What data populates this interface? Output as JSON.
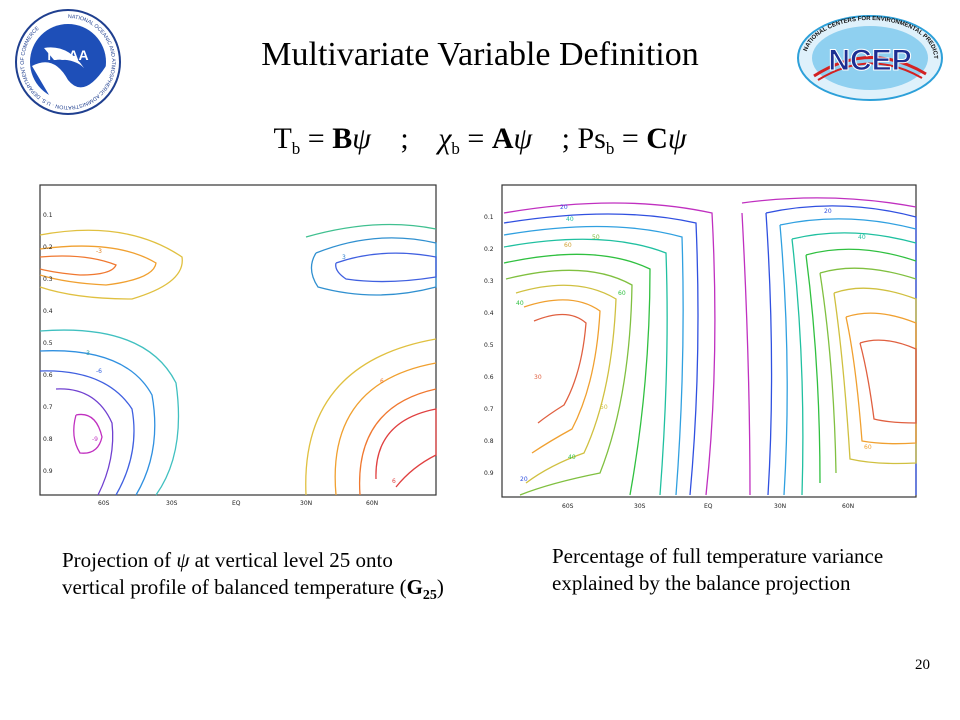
{
  "slide": {
    "title": "Multivariate Variable Definition",
    "page_number": "20"
  },
  "logos": {
    "left": {
      "name": "NOAA",
      "ring_text": "NATIONAL OCEANIC AND ATMOSPHERIC ADMINISTRATION · U.S. DEPARTMENT OF COMMERCE"
    },
    "right": {
      "name": "NCEP",
      "ring_text": "NATIONAL CENTERS FOR ENVIRONMENTAL PREDICTION"
    }
  },
  "equation": {
    "t_base": "T",
    "t_sub": "b",
    "t_rhs": "B",
    "chi": "χ",
    "chi_sub": "b",
    "chi_rhs": "A",
    "ps_base": "Ps",
    "ps_sub": "b",
    "ps_rhs": "C",
    "psi": "ψ",
    "eq": "=",
    "sep": ";"
  },
  "plots": {
    "y_ticks": [
      "0.1",
      "0.2",
      "0.3",
      "0.4",
      "0.5",
      "0.6",
      "0.7",
      "0.8",
      "0.9"
    ],
    "x_ticks": [
      "60S",
      "30S",
      "EQ",
      "30N",
      "60N"
    ],
    "left_labels": [
      "-3",
      "-3",
      "-6",
      "-9",
      "3",
      "6",
      "6"
    ],
    "right_labels": [
      "20",
      "40",
      "50",
      "60",
      "60",
      "40",
      "20",
      "30",
      "40",
      "50",
      "60",
      "20",
      "40"
    ]
  },
  "captions": {
    "left_prefix": "Projection of ",
    "left_psi": "ψ",
    "left_rest": " at vertical level 25 onto vertical profile of balanced temperature (",
    "left_bold": "G",
    "left_sub": "25",
    "left_close": ")",
    "right": "Percentage of full temperature variance explained by the balance projection"
  }
}
